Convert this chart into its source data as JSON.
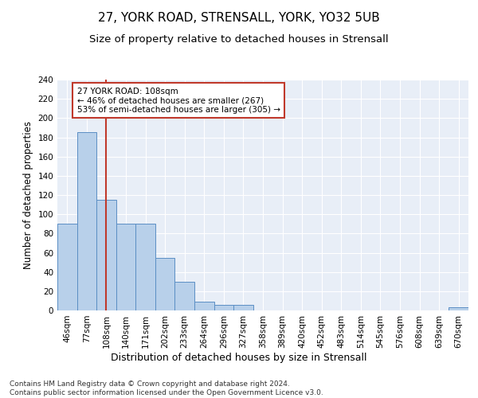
{
  "title": "27, YORK ROAD, STRENSALL, YORK, YO32 5UB",
  "subtitle": "Size of property relative to detached houses in Strensall",
  "xlabel": "Distribution of detached houses by size in Strensall",
  "ylabel": "Number of detached properties",
  "bar_labels": [
    "46sqm",
    "77sqm",
    "108sqm",
    "140sqm",
    "171sqm",
    "202sqm",
    "233sqm",
    "264sqm",
    "296sqm",
    "327sqm",
    "358sqm",
    "389sqm",
    "420sqm",
    "452sqm",
    "483sqm",
    "514sqm",
    "545sqm",
    "576sqm",
    "608sqm",
    "639sqm",
    "670sqm"
  ],
  "bar_values": [
    90,
    185,
    115,
    90,
    90,
    55,
    30,
    9,
    6,
    6,
    0,
    0,
    0,
    0,
    0,
    0,
    0,
    0,
    0,
    0,
    3
  ],
  "bar_color": "#b8d0ea",
  "bar_edge_color": "#5b8ec4",
  "highlight_bar_index": 2,
  "highlight_line_color": "#c0392b",
  "ylim": [
    0,
    240
  ],
  "yticks": [
    0,
    20,
    40,
    60,
    80,
    100,
    120,
    140,
    160,
    180,
    200,
    220,
    240
  ],
  "annotation_text": "27 YORK ROAD: 108sqm\n← 46% of detached houses are smaller (267)\n53% of semi-detached houses are larger (305) →",
  "annotation_box_color": "#c0392b",
  "background_color": "#e8eef7",
  "footer": "Contains HM Land Registry data © Crown copyright and database right 2024.\nContains public sector information licensed under the Open Government Licence v3.0.",
  "title_fontsize": 11,
  "subtitle_fontsize": 9.5,
  "ylabel_fontsize": 8.5,
  "xlabel_fontsize": 9,
  "tick_fontsize": 7.5,
  "annotation_fontsize": 7.5,
  "footer_fontsize": 6.5
}
